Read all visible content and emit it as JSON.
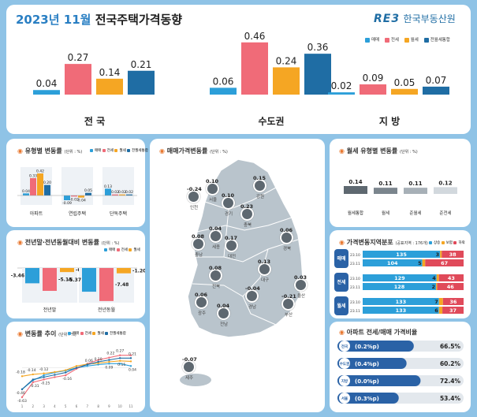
{
  "header": {
    "title_year": "2023년 11월",
    "title_rest": "전국주택가격동향",
    "logo_mark": "RE3",
    "logo_name": "한국부동산원",
    "legend": [
      "매매",
      "전세",
      "월세",
      "전월세통합"
    ]
  },
  "colors": {
    "sale": "#2c9fd9",
    "jeonse": "#f06b78",
    "monthly": "#f5a623",
    "combined": "#1f6da4",
    "title": "#2a7fc3"
  },
  "chart_data": [
    {
      "type": "bar",
      "title": "",
      "categories": [
        "전 국",
        "수도권",
        "지 방"
      ],
      "series": [
        {
          "name": "매매",
          "values": [
            0.04,
            0.06,
            0.02
          ]
        },
        {
          "name": "전세",
          "values": [
            0.27,
            0.46,
            0.09
          ]
        },
        {
          "name": "월세",
          "values": [
            0.14,
            0.24,
            0.05
          ]
        },
        {
          "name": "전월세통합",
          "values": [
            0.21,
            0.36,
            0.07
          ]
        }
      ]
    },
    {
      "type": "bar",
      "title": "유형별 변동률",
      "unit": "(단위 : %)",
      "categories": [
        "아파트",
        "연립주택",
        "단독주택"
      ],
      "series": [
        {
          "name": "매매",
          "values": [
            0.04,
            -0.09,
            0.13
          ]
        },
        {
          "name": "전세",
          "values": [
            0.33,
            -0.02,
            0.02
          ]
        },
        {
          "name": "월세",
          "values": [
            0.42,
            -0.04,
            0.02
          ]
        },
        {
          "name": "전월세통합",
          "values": [
            0.2,
            0.05,
            0.02
          ]
        }
      ]
    },
    {
      "type": "bar",
      "title": "전년말·전년동월대비 변동률",
      "unit": "(단위 : %)",
      "categories": [
        "전년말",
        "전년동월"
      ],
      "series": [
        {
          "name": "매매",
          "values": [
            -3.46,
            -5.37
          ]
        },
        {
          "name": "전세",
          "values": [
            -5.18,
            -7.48
          ]
        },
        {
          "name": "월세",
          "values": [
            -0.92,
            -1.2
          ]
        }
      ]
    },
    {
      "type": "line",
      "title": "변동률 추이",
      "unit": "(단위 : %)",
      "x": [
        1,
        2,
        3,
        4,
        5,
        6,
        7,
        8,
        9,
        10,
        11
      ],
      "series": [
        {
          "name": "매매",
          "values": [
            -0.46,
            -0.27,
            -0.16,
            -0.1,
            -0.06,
            0.0,
            0.04,
            0.07,
            0.09,
            0.09,
            0.04
          ]
        },
        {
          "name": "전세",
          "values": [
            -0.63,
            -0.31,
            -0.25,
            -0.2,
            -0.16,
            -0.02,
            0.09,
            0.17,
            0.22,
            0.27,
            0.27
          ]
        },
        {
          "name": "월세",
          "values": [
            -0.18,
            -0.14,
            -0.12,
            -0.09,
            -0.05,
            0.04,
            0.08,
            0.1,
            0.13,
            0.15,
            0.14
          ]
        },
        {
          "name": "전월세통합",
          "values": [
            -0.46,
            -0.25,
            -0.2,
            -0.15,
            -0.1,
            0.0,
            0.07,
            0.13,
            0.17,
            0.21,
            0.21
          ]
        }
      ],
      "labels": [
        "-0.18",
        "-0.14",
        "-0.12",
        "-0.46",
        "-0.31",
        "-0.25",
        "-0.16",
        "-0.63",
        "0.10",
        "0.22",
        "0.27",
        "0.21",
        "0.04",
        "0.06",
        "0.15",
        "0.09"
      ]
    },
    {
      "type": "bar",
      "title": "월세 유형별 변동률",
      "unit": "(단위 : %)",
      "categories": [
        "월세통합",
        "월세",
        "준월세",
        "준전세"
      ],
      "values": [
        0.14,
        0.11,
        0.11,
        0.12
      ]
    },
    {
      "type": "table",
      "title": "가격변동지역분포",
      "unit": "(공표지역 : 176개)",
      "legend": [
        "상승",
        "보합",
        "하락"
      ],
      "rows": [
        {
          "group": "매매",
          "period": "23.10",
          "values": [
            135,
            3,
            38
          ]
        },
        {
          "group": "매매",
          "period": "23.11",
          "values": [
            104,
            5,
            67
          ]
        },
        {
          "group": "전세",
          "period": "23.10",
          "values": [
            129,
            4,
            43
          ]
        },
        {
          "group": "전세",
          "period": "23.11",
          "values": [
            128,
            2,
            46
          ]
        },
        {
          "group": "월세",
          "period": "23.10",
          "values": [
            133,
            7,
            36
          ]
        },
        {
          "group": "월세",
          "period": "23.11",
          "values": [
            133,
            6,
            37
          ]
        }
      ]
    },
    {
      "type": "bar",
      "title": "아파트 전세/매매 가격비율",
      "categories": [
        "전국",
        "수도권",
        "지방",
        "서울"
      ],
      "changes": [
        "(0.2%p)",
        "(0.4%p)",
        "(0.0%p)",
        "(0.3%p)"
      ],
      "values": [
        66.5,
        60.2,
        72.4,
        53.4
      ]
    }
  ],
  "map": {
    "title": "매매가격변동률",
    "unit": "(단위 : %)",
    "regions": [
      {
        "name": "인천",
        "value": "-0.24"
      },
      {
        "name": "서울",
        "value": "0.10"
      },
      {
        "name": "경기",
        "value": "0.10"
      },
      {
        "name": "강원",
        "value": "0.15"
      },
      {
        "name": "충북",
        "value": "0.23"
      },
      {
        "name": "세종",
        "value": "0.04"
      },
      {
        "name": "충남",
        "value": "0.08"
      },
      {
        "name": "대전",
        "value": "0.17"
      },
      {
        "name": "경북",
        "value": "0.06"
      },
      {
        "name": "대구",
        "value": "0.13"
      },
      {
        "name": "전북",
        "value": "0.08"
      },
      {
        "name": "울산",
        "value": "0.03"
      },
      {
        "name": "광주",
        "value": "0.06"
      },
      {
        "name": "전남",
        "value": "0.04"
      },
      {
        "name": "경남",
        "value": "-0.04"
      },
      {
        "name": "부산",
        "value": "-0.21"
      },
      {
        "name": "제주",
        "value": "-0.07"
      }
    ]
  },
  "labels": {
    "dist_periods": [
      "23.10",
      "23.11"
    ]
  }
}
